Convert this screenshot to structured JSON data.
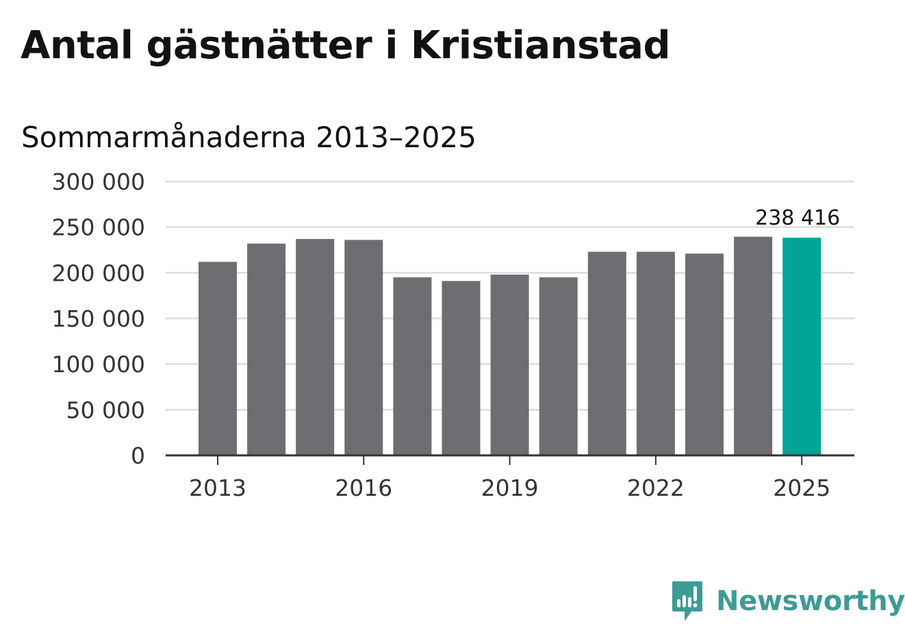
{
  "title": "Antal gästnätter i Kristianstad",
  "subtitle": "Sommarmånaderna 2013–2025",
  "brand": {
    "name": "Newsworthy",
    "logo_icon": "newsworthy-logo-icon",
    "color": "#3d9b96"
  },
  "chart_data": {
    "type": "bar",
    "categories": [
      "2013",
      "2014",
      "2015",
      "2016",
      "2017",
      "2018",
      "2019",
      "2020",
      "2021",
      "2022",
      "2023",
      "2024",
      "2025"
    ],
    "values": [
      212000,
      232000,
      237000,
      236000,
      195000,
      191000,
      198000,
      195000,
      223000,
      223000,
      221000,
      239500,
      238416
    ],
    "x_tick_labels": [
      "2013",
      "2016",
      "2019",
      "2022",
      "2025"
    ],
    "y_ticks": [
      0,
      50000,
      100000,
      150000,
      200000,
      250000,
      300000
    ],
    "y_tick_labels": [
      "0",
      "50 000",
      "100 000",
      "150 000",
      "200 000",
      "250 000",
      "300 000"
    ],
    "ylim": [
      0,
      300000
    ],
    "highlight": {
      "category": "2025",
      "label": "238 416"
    },
    "bar_color": "#6e6d72",
    "highlight_color": "#00a598",
    "gridline_color": "#dcdcdc",
    "axis_color": "#333333",
    "grid": true,
    "legend": false,
    "xlabel": "",
    "ylabel": ""
  }
}
